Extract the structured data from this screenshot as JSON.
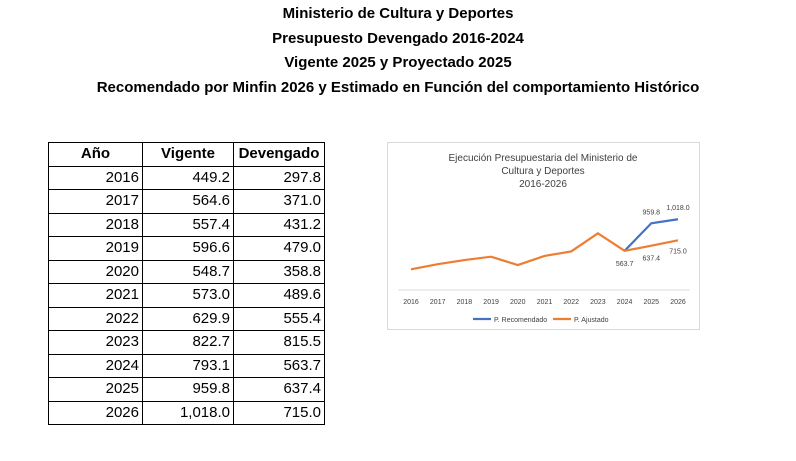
{
  "title_lines": [
    "Ministerio de Cultura y Deportes",
    "Presupuesto Devengado 2016-2024",
    "Vigente 2025 y Proyectado 2025",
    "Recomendado por Minfin 2026 y Estimado en Función del comportamiento Histórico"
  ],
  "table": {
    "headers": [
      "Año",
      "Vigente",
      "Devengado"
    ],
    "rows": [
      [
        "2016",
        "449.2",
        "297.8"
      ],
      [
        "2017",
        "564.6",
        "371.0"
      ],
      [
        "2018",
        "557.4",
        "431.2"
      ],
      [
        "2019",
        "596.6",
        "479.0"
      ],
      [
        "2020",
        "548.7",
        "358.8"
      ],
      [
        "2021",
        "573.0",
        "489.6"
      ],
      [
        "2022",
        "629.9",
        "555.4"
      ],
      [
        "2023",
        "822.7",
        "815.5"
      ],
      [
        "2024",
        "793.1",
        "563.7"
      ],
      [
        "2025",
        "959.8",
        "637.4"
      ],
      [
        "2026",
        "1,018.0",
        "715.0"
      ]
    ]
  },
  "chart_data": {
    "type": "line",
    "title": "Ejecución Presupuestaria del Ministerio de Cultura y Deportes 2016-2026",
    "title_lines": [
      "Ejecución Presupuestaria del Ministerio de",
      "Cultura y Deportes",
      "2016-2026"
    ],
    "categories": [
      "2016",
      "2017",
      "2018",
      "2019",
      "2020",
      "2021",
      "2022",
      "2023",
      "2024",
      "2025",
      "2026"
    ],
    "legend_position": "bottom",
    "grid": false,
    "ylim": [
      0,
      1100
    ],
    "series": [
      {
        "name": "P. Recomendado",
        "color": "#4472c4",
        "values": [
          null,
          null,
          null,
          null,
          null,
          null,
          null,
          null,
          563.7,
          959.8,
          1018.0
        ],
        "labels": [
          null,
          null,
          null,
          null,
          null,
          null,
          null,
          null,
          null,
          "959.8",
          "1,018.0"
        ]
      },
      {
        "name": "P. Ajustado",
        "color": "#ed7d31",
        "values": [
          297.8,
          371.0,
          431.2,
          479.0,
          358.8,
          489.6,
          555.4,
          815.5,
          563.7,
          637.4,
          715.0
        ],
        "labels": [
          null,
          null,
          null,
          null,
          null,
          null,
          null,
          null,
          "563.7",
          "637.4",
          "715.0"
        ]
      }
    ]
  }
}
